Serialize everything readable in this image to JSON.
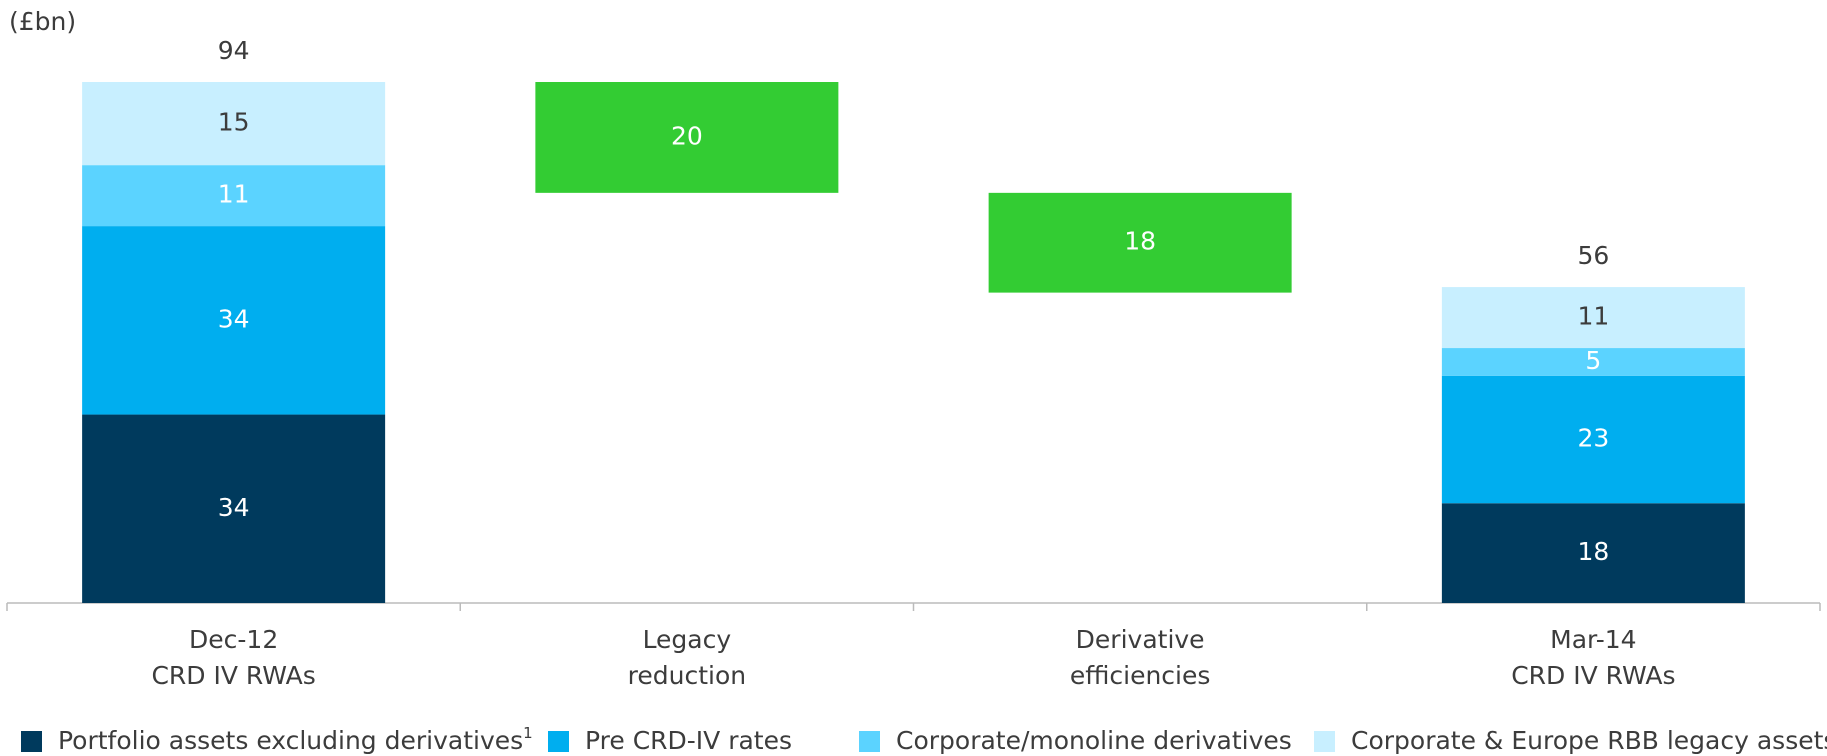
{
  "chart_data": {
    "type": "waterfall",
    "unit_label": "(£bn)",
    "categories": [
      [
        "Dec-12",
        "CRD IV RWAs"
      ],
      [
        "Legacy",
        "reduction"
      ],
      [
        "Derivative",
        "efficiencies"
      ],
      [
        "Mar-14",
        "CRD IV RWAs"
      ]
    ],
    "series": [
      {
        "name": "Portfolio assets excluding derivatives",
        "footnote": "1",
        "color": "#003a5d",
        "values": [
          34,
          null,
          null,
          18
        ]
      },
      {
        "name": "Pre CRD-IV rates",
        "color": "#00aeef",
        "values": [
          34,
          null,
          null,
          23
        ]
      },
      {
        "name": "Corporate/monoline derivatives",
        "color": "#5bd3ff",
        "values": [
          11,
          null,
          null,
          5
        ]
      },
      {
        "name": "Corporate & Europe RBB legacy assets",
        "color": "#c8efff",
        "values": [
          15,
          null,
          null,
          11
        ]
      }
    ],
    "changes": {
      "color": "#33cc33",
      "values": [
        null,
        20,
        18,
        null
      ]
    },
    "totals": [
      94,
      null,
      null,
      56
    ]
  }
}
